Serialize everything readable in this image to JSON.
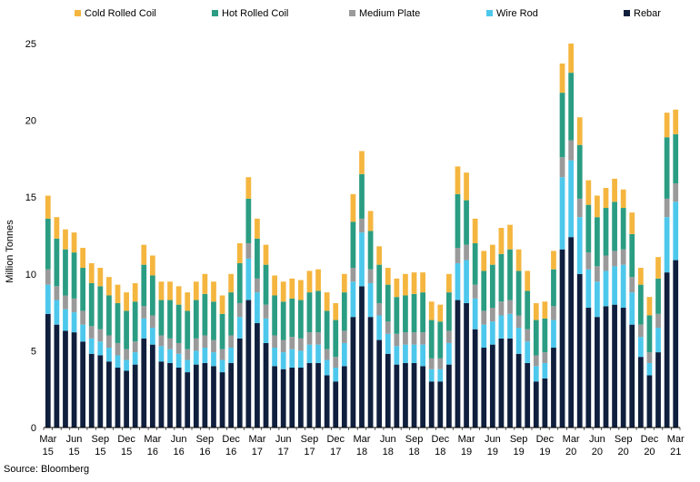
{
  "chart_data": {
    "type": "bar",
    "stacked": true,
    "title": "",
    "xlabel": "",
    "ylabel": "Million Tonnes",
    "ylim": [
      0,
      25
    ],
    "yticks": [
      0,
      5,
      10,
      15,
      20,
      25
    ],
    "grid": false,
    "legend_position": "top",
    "source": "Source: Bloomberg",
    "categories": [
      "Mar 15",
      "Apr 15",
      "May 15",
      "Jun 15",
      "Jul 15",
      "Aug 15",
      "Sep 15",
      "Oct 15",
      "Nov 15",
      "Dec 15",
      "Jan 16",
      "Feb 16",
      "Mar 16",
      "Apr 16",
      "May 16",
      "Jun 16",
      "Jul 16",
      "Aug 16",
      "Sep 16",
      "Oct 16",
      "Nov 16",
      "Dec 16",
      "Jan 17",
      "Feb 17",
      "Mar 17",
      "Apr 17",
      "May 17",
      "Jun 17",
      "Jul 17",
      "Aug 17",
      "Sep 17",
      "Oct 17",
      "Nov 17",
      "Dec 17",
      "Jan 18",
      "Feb 18",
      "Mar 18",
      "Apr 18",
      "May 18",
      "Jun 18",
      "Jul 18",
      "Aug 18",
      "Sep 18",
      "Oct 18",
      "Nov 18",
      "Dec 18",
      "Jan 19",
      "Feb 19",
      "Mar 19",
      "Apr 19",
      "May 19",
      "Jun 19",
      "Jul 19",
      "Aug 19",
      "Sep 19",
      "Oct 19",
      "Nov 19",
      "Dec 19",
      "Jan 20",
      "Feb 20",
      "Mar 20",
      "Apr 20",
      "May 20",
      "Jun 20",
      "Jul 20",
      "Aug 20",
      "Sep 20",
      "Oct 20",
      "Nov 20",
      "Dec 20",
      "Jan 21",
      "Feb 21",
      "Mar 21"
    ],
    "tick_labels": [
      {
        "index": 0,
        "month": "Mar",
        "year": "15"
      },
      {
        "index": 3,
        "month": "Jun",
        "year": "15"
      },
      {
        "index": 6,
        "month": "Sep",
        "year": "15"
      },
      {
        "index": 9,
        "month": "Dec",
        "year": "15"
      },
      {
        "index": 12,
        "month": "Mar",
        "year": "16"
      },
      {
        "index": 15,
        "month": "Jun",
        "year": "16"
      },
      {
        "index": 18,
        "month": "Sep",
        "year": "16"
      },
      {
        "index": 21,
        "month": "Dec",
        "year": "16"
      },
      {
        "index": 24,
        "month": "Mar",
        "year": "17"
      },
      {
        "index": 27,
        "month": "Jun",
        "year": "17"
      },
      {
        "index": 30,
        "month": "Sep",
        "year": "17"
      },
      {
        "index": 33,
        "month": "Dec",
        "year": "17"
      },
      {
        "index": 36,
        "month": "Mar",
        "year": "18"
      },
      {
        "index": 39,
        "month": "Jun",
        "year": "18"
      },
      {
        "index": 42,
        "month": "Sep",
        "year": "18"
      },
      {
        "index": 45,
        "month": "Dec",
        "year": "18"
      },
      {
        "index": 48,
        "month": "Mar",
        "year": "19"
      },
      {
        "index": 51,
        "month": "Jun",
        "year": "19"
      },
      {
        "index": 54,
        "month": "Sep",
        "year": "19"
      },
      {
        "index": 57,
        "month": "Dec",
        "year": "19"
      },
      {
        "index": 60,
        "month": "Mar",
        "year": "20"
      },
      {
        "index": 63,
        "month": "Jun",
        "year": "20"
      },
      {
        "index": 66,
        "month": "Sep",
        "year": "20"
      },
      {
        "index": 69,
        "month": "Dec",
        "year": "20"
      },
      {
        "index": 72,
        "month": "Mar",
        "year": "21"
      }
    ],
    "series": [
      {
        "name": "Rebar",
        "color": "#0f1f3d",
        "values": [
          7.4,
          6.7,
          6.3,
          6.2,
          5.6,
          4.8,
          4.7,
          4.3,
          3.9,
          3.7,
          4.1,
          5.8,
          5.4,
          4.3,
          4.2,
          3.9,
          3.6,
          4.1,
          4.2,
          4.0,
          3.6,
          4.2,
          5.8,
          8.3,
          6.8,
          5.5,
          4.0,
          3.8,
          3.9,
          3.9,
          4.2,
          4.2,
          3.4,
          3.0,
          4.0,
          7.2,
          9.2,
          7.2,
          5.7,
          4.8,
          4.1,
          4.2,
          4.2,
          4.0,
          3.0,
          3.0,
          4.1,
          8.3,
          8.1,
          6.4,
          5.2,
          5.4,
          5.8,
          5.8,
          4.8,
          4.2,
          3.0,
          3.2,
          5.2,
          11.6,
          12.4,
          10.0,
          7.8,
          7.2,
          7.9,
          8.0,
          7.8,
          6.7,
          4.6,
          3.4,
          4.9,
          10.1,
          10.9
        ]
      },
      {
        "name": "Wire Rod",
        "color": "#4dc8ec",
        "values": [
          1.9,
          1.6,
          1.4,
          1.3,
          1.1,
          1.0,
          0.9,
          0.9,
          0.8,
          0.7,
          0.8,
          1.3,
          1.1,
          1.0,
          0.9,
          0.9,
          0.8,
          0.9,
          1.0,
          0.9,
          0.8,
          1.0,
          1.4,
          2.7,
          2.0,
          1.6,
          1.2,
          1.1,
          1.2,
          1.1,
          1.2,
          1.2,
          1.0,
          0.9,
          1.5,
          2.3,
          3.5,
          2.2,
          1.6,
          1.3,
          1.2,
          1.2,
          1.2,
          1.4,
          0.8,
          0.8,
          1.4,
          2.4,
          2.8,
          2.0,
          1.5,
          1.5,
          1.5,
          1.6,
          1.7,
          1.4,
          1.0,
          1.0,
          1.8,
          4.7,
          5.0,
          3.7,
          2.5,
          2.3,
          2.3,
          2.5,
          2.8,
          2.1,
          1.3,
          0.8,
          1.6,
          3.6,
          3.8
        ]
      },
      {
        "name": "Medium Plate",
        "color": "#9a9a9a",
        "values": [
          1.0,
          0.9,
          0.9,
          0.9,
          0.9,
          0.8,
          0.8,
          0.8,
          0.8,
          0.7,
          0.7,
          0.8,
          0.8,
          0.7,
          0.7,
          0.7,
          0.7,
          0.8,
          0.8,
          0.8,
          0.7,
          0.8,
          0.9,
          1.0,
          0.9,
          0.9,
          0.8,
          0.8,
          0.8,
          0.8,
          0.8,
          0.8,
          0.7,
          0.7,
          0.8,
          0.9,
          0.9,
          0.9,
          0.8,
          0.8,
          0.8,
          0.8,
          0.8,
          0.8,
          0.7,
          0.7,
          0.8,
          1.0,
          1.0,
          0.9,
          0.9,
          0.9,
          0.9,
          0.9,
          0.8,
          0.8,
          0.7,
          0.7,
          0.9,
          1.3,
          1.3,
          1.2,
          1.1,
          1.0,
          1.0,
          1.0,
          1.0,
          1.0,
          0.8,
          0.7,
          0.9,
          1.2,
          1.2
        ]
      },
      {
        "name": "Hot Rolled Coil",
        "color": "#2a9d83",
        "values": [
          3.3,
          3.1,
          3.0,
          3.0,
          2.8,
          2.8,
          2.8,
          2.6,
          2.6,
          2.5,
          2.6,
          2.7,
          2.6,
          2.3,
          2.5,
          2.5,
          2.5,
          2.5,
          2.7,
          2.5,
          2.3,
          2.8,
          2.6,
          2.9,
          2.6,
          2.6,
          2.6,
          2.5,
          2.5,
          2.5,
          2.6,
          2.7,
          2.5,
          2.4,
          2.5,
          3.0,
          2.9,
          2.5,
          2.5,
          2.4,
          2.4,
          2.4,
          2.5,
          2.6,
          2.5,
          2.4,
          2.5,
          3.5,
          2.9,
          2.7,
          2.6,
          2.8,
          3.1,
          3.3,
          2.9,
          2.5,
          2.3,
          2.2,
          2.4,
          4.2,
          4.4,
          3.5,
          3.1,
          3.2,
          3.1,
          3.2,
          2.7,
          2.8,
          2.6,
          2.4,
          2.3,
          4.0,
          3.2
        ]
      },
      {
        "name": "Cold Rolled Coil",
        "color": "#f5b63f",
        "values": [
          1.5,
          1.4,
          1.3,
          1.3,
          1.3,
          1.3,
          1.2,
          1.2,
          1.2,
          1.2,
          1.2,
          1.3,
          1.3,
          1.2,
          1.2,
          1.2,
          1.2,
          1.2,
          1.3,
          1.3,
          1.2,
          1.2,
          1.3,
          1.4,
          1.3,
          1.3,
          1.3,
          1.3,
          1.3,
          1.3,
          1.4,
          1.4,
          1.2,
          1.1,
          1.2,
          1.8,
          1.5,
          1.3,
          1.2,
          1.1,
          1.2,
          1.4,
          1.4,
          1.3,
          1.2,
          1.1,
          1.2,
          1.8,
          1.8,
          1.6,
          1.3,
          1.3,
          1.7,
          1.6,
          1.4,
          1.3,
          1.1,
          1.1,
          1.2,
          1.9,
          1.9,
          1.8,
          1.6,
          1.4,
          1.3,
          1.5,
          1.2,
          1.4,
          1.1,
          1.2,
          1.4,
          1.6,
          1.6
        ]
      }
    ],
    "legend_order": [
      "Cold Rolled Coil",
      "Hot Rolled Coil",
      "Medium Plate",
      "Wire Rod",
      "Rebar"
    ]
  }
}
